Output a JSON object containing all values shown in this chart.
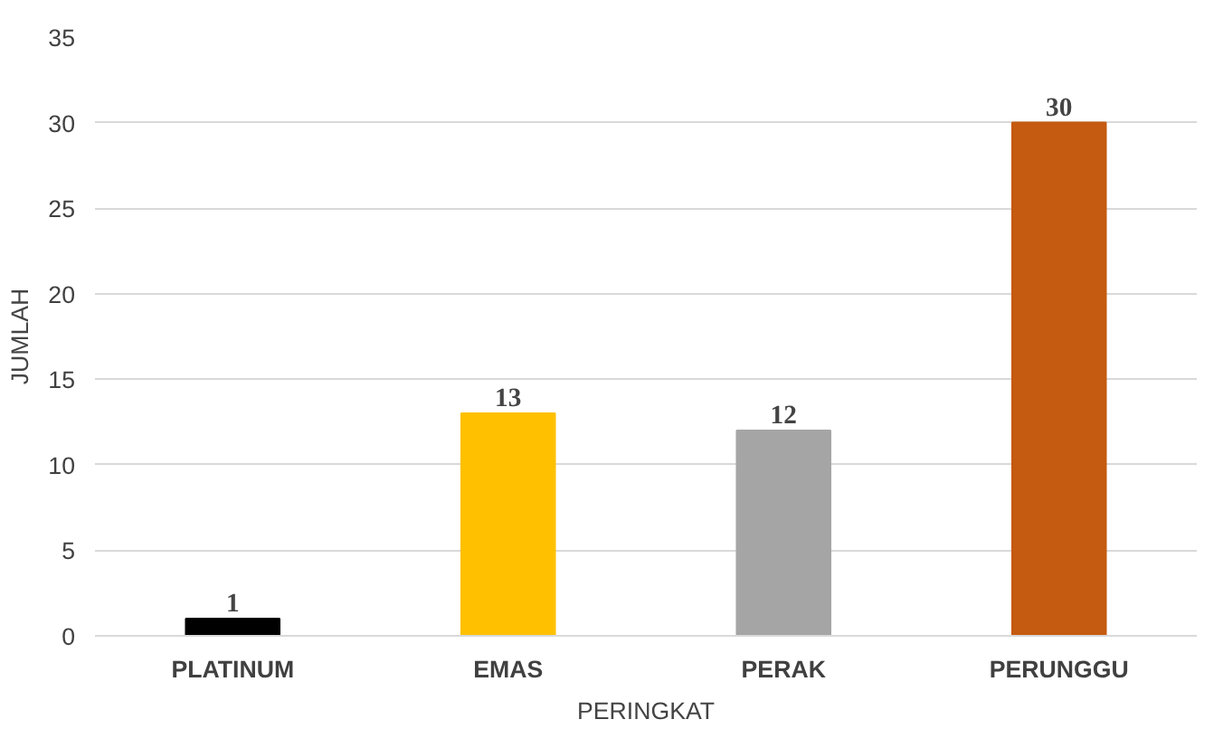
{
  "chart_data": {
    "type": "bar",
    "xlabel": "PERINGKAT",
    "ylabel": "JUMLAH",
    "categories": [
      "PLATINUM",
      "EMAS",
      "PERAK",
      "PERUNGGU"
    ],
    "values": [
      1,
      13,
      12,
      30
    ],
    "colors": [
      "#000000",
      "#ffc000",
      "#a5a5a5",
      "#c55a11"
    ],
    "ylim": [
      0,
      35
    ],
    "yticks": [
      0,
      5,
      10,
      15,
      20,
      25,
      30,
      35
    ],
    "grid": "y",
    "data_labels": true
  }
}
